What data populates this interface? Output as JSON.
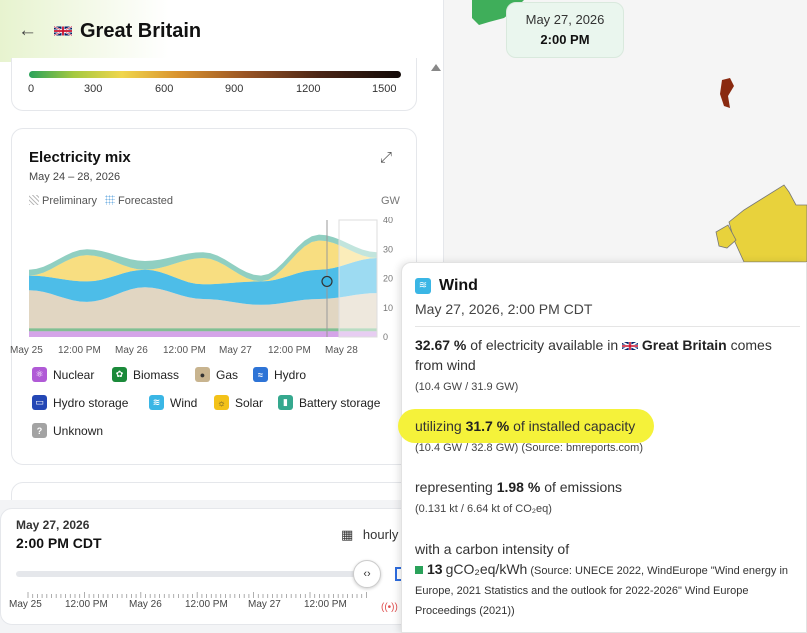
{
  "header": {
    "title": "Great Britain",
    "back_icon": "arrow-left-icon",
    "flag_icon": "uk-flag-icon"
  },
  "scale": {
    "ticks": [
      "0",
      "300",
      "600",
      "900",
      "1200",
      "1500"
    ]
  },
  "mix": {
    "title": "Electricity mix",
    "range": "May 24 – 28, 2026",
    "preliminary": "Preliminary",
    "forecasted": "Forecasted",
    "unit": "GW",
    "y_ticks": [
      "40",
      "30",
      "20",
      "10",
      "0"
    ],
    "x_ticks": [
      "May 25",
      "12:00 PM",
      "May 26",
      "12:00 PM",
      "May 27",
      "12:00 PM",
      "May 28"
    ],
    "legend": [
      {
        "label": "Nuclear",
        "color": "#b05ad6"
      },
      {
        "label": "Biomass",
        "color": "#1b8a3a"
      },
      {
        "label": "Gas",
        "color": "#c8b48f"
      },
      {
        "label": "Hydro",
        "color": "#2e74d6"
      },
      {
        "label": "Hydro storage",
        "color": "#2447b5"
      },
      {
        "label": "Wind",
        "color": "#3ab6e5"
      },
      {
        "label": "Solar",
        "color": "#f3c219"
      },
      {
        "label": "Battery storage",
        "color": "#35a88e"
      },
      {
        "label": "Unknown",
        "color": "#a3a3a3"
      }
    ]
  },
  "chart_data": {
    "type": "area",
    "xlabel": "",
    "ylabel": "GW",
    "ylim": [
      0,
      40
    ],
    "categories": [
      "May 25",
      "12:00 PM",
      "May 26",
      "12:00 PM",
      "May 27",
      "12:00 PM",
      "May 28"
    ],
    "series": [
      {
        "name": "Nuclear",
        "values": [
          2,
          2,
          2,
          2,
          2,
          2,
          2
        ]
      },
      {
        "name": "Biomass",
        "values": [
          1,
          1,
          1,
          1,
          1,
          1,
          1
        ]
      },
      {
        "name": "Gas",
        "values": [
          13,
          9,
          14,
          10,
          8,
          10,
          12
        ]
      },
      {
        "name": "Wind",
        "values": [
          5,
          7,
          6,
          5,
          8,
          10,
          12
        ]
      },
      {
        "name": "Solar",
        "values": [
          0,
          9,
          0,
          9,
          0,
          10,
          0
        ]
      },
      {
        "name": "Battery storage",
        "values": [
          2,
          2,
          3,
          2,
          2,
          2,
          2
        ]
      }
    ]
  },
  "map": {
    "date": "May 27, 2026",
    "time": "2:00 PM"
  },
  "timebar": {
    "date": "May 27, 2026",
    "time": "2:00 PM CDT",
    "interval": "hourly",
    "ticks": [
      "May 25",
      "12:00 PM",
      "May 26",
      "12:00 PM",
      "May 27",
      "12:00 PM"
    ],
    "position": 0.97
  },
  "tooltip": {
    "title": "Wind",
    "datetime": "May 27, 2026, 2:00 PM CDT",
    "share_pct": "32.67 %",
    "share_text": "of electricity available in",
    "zone": "Great Britain",
    "share_tail": "comes from wind",
    "share_detail": "(10.4 GW / 31.9 GW)",
    "util_prefix": "utilizing",
    "util_pct": "31.7 %",
    "util_suffix": "of installed capacity",
    "util_detail": "(10.4 GW / 32.8 GW) (Source: bmreports.com)",
    "emis_prefix": "representing",
    "emis_pct": "1.98 %",
    "emis_suffix": "of emissions",
    "emis_detail": "(0.131 kt / 6.64 kt of CO₂eq)",
    "ci_label": "with a carbon intensity of",
    "ci_value": "13",
    "ci_unit": "gCO₂eq/kWh",
    "ci_source": "(Source: UNECE 2022, WindEurope \"Wind energy in Europe, 2021 Statistics and the outlook for 2022-2026\" Wind Europe Proceedings (2021))"
  }
}
